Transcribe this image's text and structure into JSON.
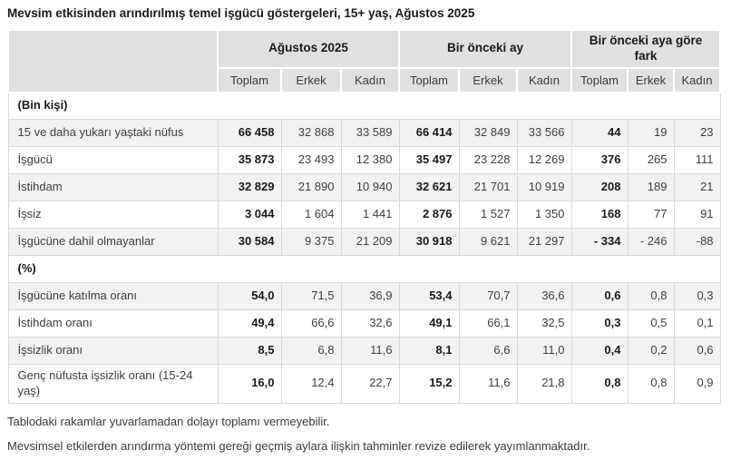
{
  "title": "Mevsim etkisinden arındırılmış temel işgücü göstergeleri, 15+ yaş, Ağustos 2025",
  "theme": {
    "header_bg": "#e0e0e0",
    "stripe_bg": "#f2f2f2",
    "row_bg": "#ffffff",
    "border": "#d9d9d9",
    "text_strong": "#1a1a1a",
    "text": "#404040"
  },
  "table": {
    "col_groups": [
      {
        "label": "Ağustos 2025"
      },
      {
        "label": "Bir önceki ay"
      },
      {
        "label": "Bir önceki aya göre fark"
      }
    ],
    "sub_headers": [
      "Toplam",
      "Erkek",
      "Kadın"
    ],
    "sections": [
      {
        "label": "(Bin kişi)",
        "rows": [
          {
            "label": "15 ve daha yukarı yaştaki nüfus",
            "values": [
              "66 458",
              "32 868",
              "33 589",
              "66 414",
              "32 849",
              "33 566",
              "44",
              "19",
              "23"
            ]
          },
          {
            "label": "İşgücü",
            "values": [
              "35 873",
              "23 493",
              "12 380",
              "35 497",
              "23 228",
              "12 269",
              "376",
              "265",
              "111"
            ]
          },
          {
            "label": "İstihdam",
            "values": [
              "32 829",
              "21 890",
              "10 940",
              "32 621",
              "21 701",
              "10 919",
              "208",
              "189",
              "21"
            ]
          },
          {
            "label": "İşsiz",
            "values": [
              "3 044",
              "1 604",
              "1 441",
              "2 876",
              "1 527",
              "1 350",
              "168",
              "77",
              "91"
            ]
          },
          {
            "label": "İşgücüne dahil olmayanlar",
            "values": [
              "30 584",
              "9 375",
              "21 209",
              "30 918",
              "9 621",
              "21 297",
              "- 334",
              "- 246",
              "-88"
            ]
          }
        ]
      },
      {
        "label": "(%)",
        "rows": [
          {
            "label": "İşgücüne katılma oranı",
            "values": [
              "54,0",
              "71,5",
              "36,9",
              "53,4",
              "70,7",
              "36,6",
              "0,6",
              "0,8",
              "0,3"
            ]
          },
          {
            "label": "İstihdam oranı",
            "values": [
              "49,4",
              "66,6",
              "32,6",
              "49,1",
              "66,1",
              "32,5",
              "0,3",
              "0,5",
              "0,1"
            ]
          },
          {
            "label": "İşsizlik oranı",
            "values": [
              "8,5",
              "6,8",
              "11,6",
              "8,1",
              "6,6",
              "11,0",
              "0,4",
              "0,2",
              "0,6"
            ]
          },
          {
            "label": "Genç nüfusta işsizlik oranı (15-24 yaş)",
            "values": [
              "16,0",
              "12,4",
              "22,7",
              "15,2",
              "11,6",
              "21,8",
              "0,8",
              "0,8",
              "0,9"
            ]
          }
        ]
      }
    ]
  },
  "footnotes": [
    "Tablodaki rakamlar yuvarlamadan dolayı toplamı vermeyebilir.",
    "Mevsimsel etkilerden arındırma yöntemi gereği geçmiş aylara ilişkin tahminler revize edilerek yayımlanmaktadır."
  ]
}
